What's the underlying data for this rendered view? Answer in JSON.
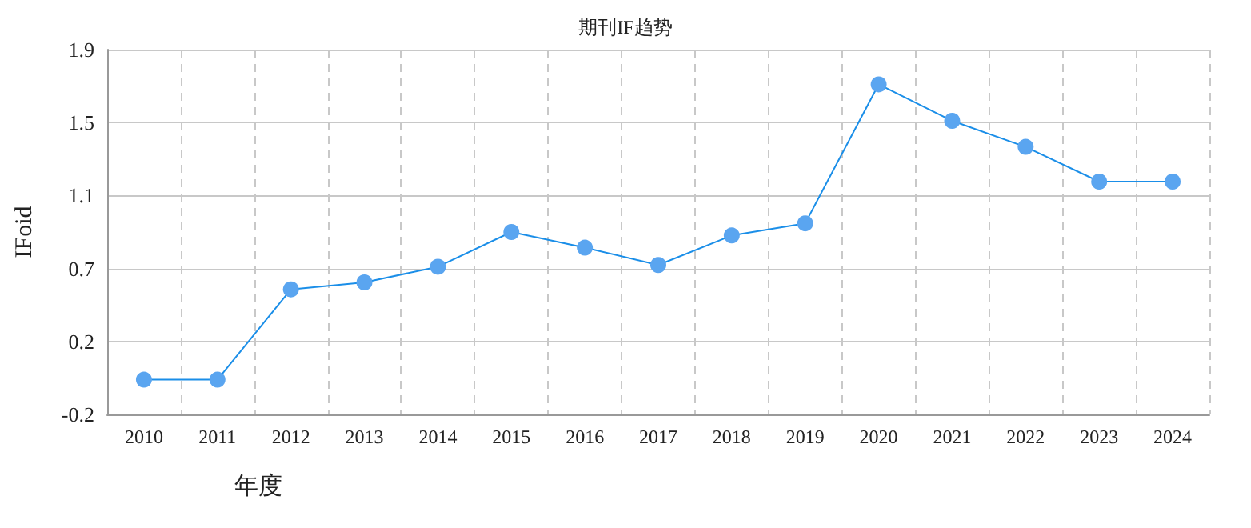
{
  "chart_data": {
    "type": "line",
    "title": "期刊IF趋势",
    "xlabel": "年度",
    "ylabel": "IFoid",
    "categories": [
      "2010",
      "2011",
      "2012",
      "2013",
      "2014",
      "2015",
      "2016",
      "2017",
      "2018",
      "2019",
      "2020",
      "2021",
      "2022",
      "2023",
      "2024"
    ],
    "series": [
      {
        "color": "#5aa5f0",
        "values": [
          0.02,
          0.02,
          0.54,
          0.58,
          0.67,
          0.87,
          0.78,
          0.68,
          0.85,
          0.92,
          1.72,
          1.51,
          1.36,
          1.16,
          1.16
        ]
      }
    ],
    "ylim": [
      -0.18,
      1.92
    ],
    "yticks": [
      {
        "value": -0.18,
        "label": "-0.2"
      },
      {
        "value": 0.24,
        "label": "0.2"
      },
      {
        "value": 0.66,
        "label": "0.7"
      },
      {
        "value": 1.08,
        "label": "1.1"
      },
      {
        "value": 1.5,
        "label": "1.5"
      },
      {
        "value": 1.92,
        "label": "1.9"
      }
    ],
    "grid": true,
    "marker": "circle",
    "line_style": "solid"
  }
}
